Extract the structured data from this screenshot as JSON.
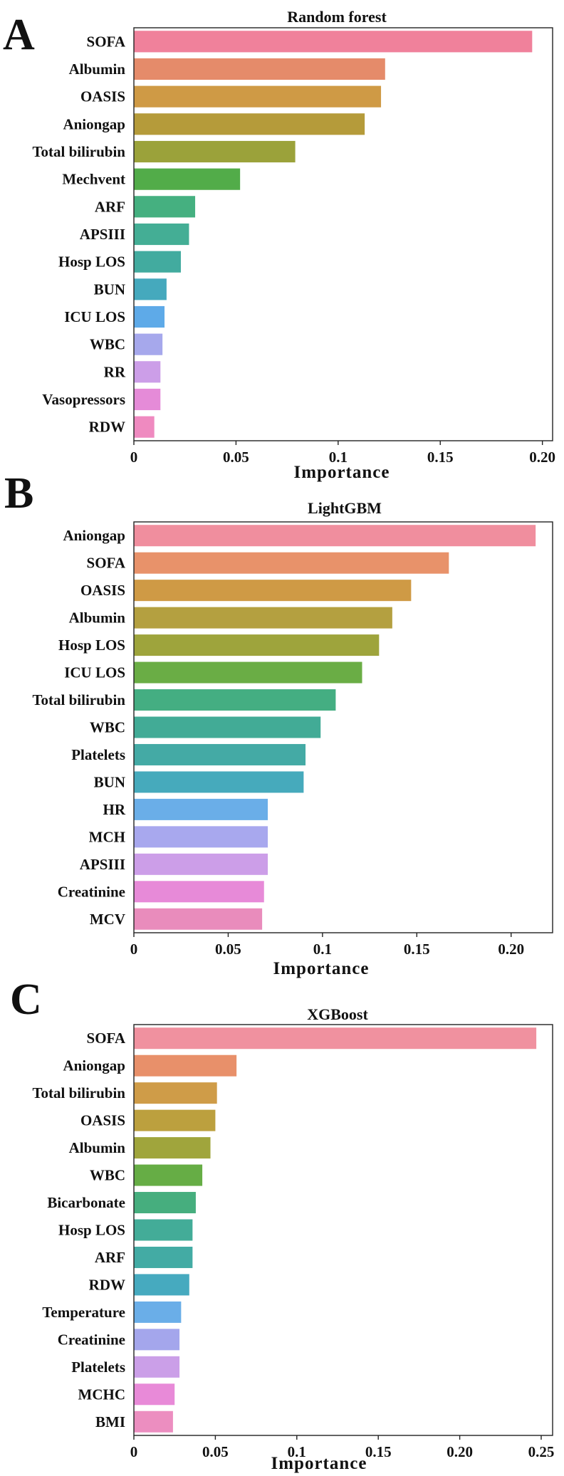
{
  "chart_data": [
    {
      "panel": "A",
      "type": "bar",
      "orientation": "horizontal",
      "title": "Random forest",
      "xlabel": "Importance",
      "ylabel": "",
      "xlim": [
        0,
        0.205
      ],
      "xticks": [
        0,
        0.05,
        0.1,
        0.15,
        0.2
      ],
      "xtick_labels": [
        "0",
        "0.05",
        "0.1",
        "0.15",
        "0.20"
      ],
      "categories": [
        "SOFA",
        "Albumin",
        "OASIS",
        "Aniongap",
        "Total bilirubin",
        "Mechvent",
        "ARF",
        "APSIII",
        "Hosp LOS",
        "BUN",
        "ICU LOS",
        "WBC",
        "RR",
        "Vasopressors",
        "RDW"
      ],
      "values": [
        0.195,
        0.123,
        0.121,
        0.113,
        0.079,
        0.052,
        0.03,
        0.027,
        0.023,
        0.016,
        0.015,
        0.014,
        0.013,
        0.013,
        0.01
      ],
      "colors": [
        "#f0819b",
        "#e58b6a",
        "#cf9a45",
        "#b59b3a",
        "#9ba23a",
        "#52ac49",
        "#45b080",
        "#44ae95",
        "#42ab9f",
        "#45a9bd",
        "#5eaae8",
        "#a6a8ec",
        "#cc9ee8",
        "#e58bd8",
        "#ef8ac0"
      ]
    },
    {
      "panel": "B",
      "type": "bar",
      "orientation": "horizontal",
      "title": "LightGBM",
      "xlabel": "Importance",
      "ylabel": "",
      "xlim": [
        0,
        0.222
      ],
      "xticks": [
        0,
        0.05,
        0.1,
        0.15,
        0.2
      ],
      "xtick_labels": [
        "0",
        "0.05",
        "0.1",
        "0.15",
        "0.20"
      ],
      "categories": [
        "Aniongap",
        "SOFA",
        "OASIS",
        "Albumin",
        "Hosp LOS",
        "ICU LOS",
        "Total bilirubin",
        "WBC",
        "Platelets",
        "BUN",
        "HR",
        "MCH",
        "APSIII",
        "Creatinine",
        "MCV"
      ],
      "values": [
        0.213,
        0.167,
        0.147,
        0.137,
        0.13,
        0.121,
        0.107,
        0.099,
        0.091,
        0.09,
        0.071,
        0.071,
        0.071,
        0.069,
        0.068
      ],
      "colors": [
        "#f08e9e",
        "#e8926a",
        "#cf9a45",
        "#b4a040",
        "#9ea43c",
        "#6aad45",
        "#44ae82",
        "#42ab96",
        "#44aaa5",
        "#46aabc",
        "#6aaee8",
        "#a8a8ee",
        "#cc9ee8",
        "#e78ad8",
        "#e98cbc"
      ]
    },
    {
      "panel": "C",
      "type": "bar",
      "orientation": "horizontal",
      "title": "XGBoost",
      "xlabel": "Importance",
      "ylabel": "",
      "xlim": [
        0,
        0.257
      ],
      "xticks": [
        0,
        0.05,
        0.1,
        0.15,
        0.2,
        0.25
      ],
      "xtick_labels": [
        "0",
        "0.05",
        "0.1",
        "0.15",
        "0.20",
        "0.25"
      ],
      "categories": [
        "SOFA",
        "Aniongap",
        "Total bilirubin",
        "OASIS",
        "Albumin",
        "WBC",
        "Bicarbonate",
        "Hosp LOS",
        "ARF",
        "RDW",
        "Temperature",
        "Creatinine",
        "Platelets",
        "MCHC",
        "BMI"
      ],
      "values": [
        0.247,
        0.063,
        0.051,
        0.05,
        0.047,
        0.042,
        0.038,
        0.036,
        0.036,
        0.034,
        0.029,
        0.028,
        0.028,
        0.025,
        0.024
      ],
      "colors": [
        "#f0919f",
        "#e8906a",
        "#cf9c48",
        "#bca03e",
        "#a0a53c",
        "#66ad45",
        "#46ae7e",
        "#43ac98",
        "#43aba4",
        "#46aabf",
        "#6aaee8",
        "#a4a6ec",
        "#cb9fe8",
        "#e88ad8",
        "#ec8ec0"
      ]
    }
  ]
}
